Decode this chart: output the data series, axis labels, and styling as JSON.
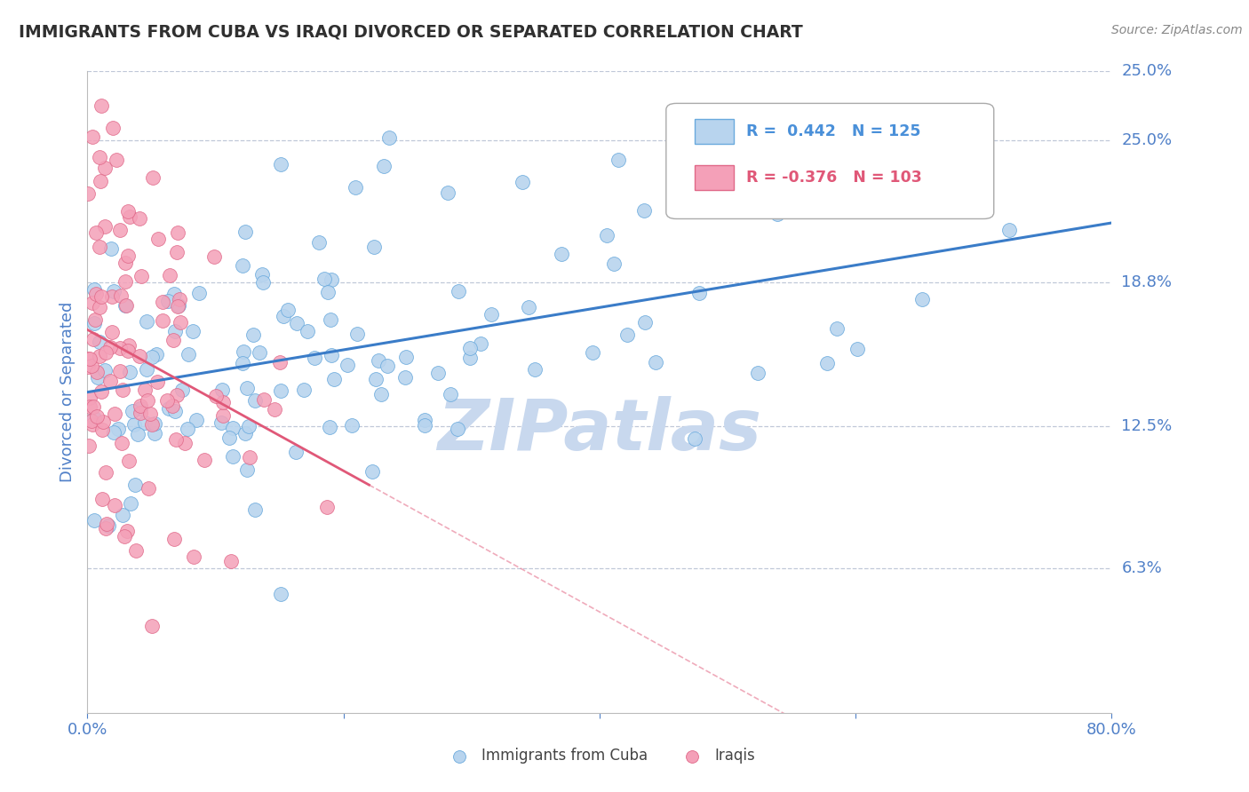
{
  "title": "IMMIGRANTS FROM CUBA VS IRAQI DIVORCED OR SEPARATED CORRELATION CHART",
  "source_text": "Source: ZipAtlas.com",
  "ylabel": "Divorced or Separated",
  "xlim": [
    0.0,
    0.8
  ],
  "ylim": [
    0.0,
    0.28
  ],
  "xticks": [
    0.0,
    0.2,
    0.4,
    0.6,
    0.8
  ],
  "xtick_labels": [
    "0.0%",
    "",
    "",
    "",
    "80.0%"
  ],
  "yticks": [
    0.063,
    0.125,
    0.188,
    0.25
  ],
  "ytick_labels": [
    "6.3%",
    "12.5%",
    "18.8%",
    "25.0%"
  ],
  "blue_R": 0.442,
  "blue_N": 125,
  "pink_R": -0.376,
  "pink_N": 103,
  "blue_color": "#b8d4ee",
  "pink_color": "#f4a0b8",
  "blue_edge_color": "#6aaadd",
  "pink_edge_color": "#e06888",
  "blue_line_color": "#3a7cc8",
  "pink_line_color": "#e05878",
  "watermark": "ZIPatlas",
  "watermark_color": "#c8d8ee",
  "background_color": "#ffffff",
  "grid_color": "#c0c8d8",
  "title_color": "#303030",
  "axis_label_color": "#5080c8",
  "tick_label_color": "#5080c8",
  "source_color": "#888888",
  "legend_text_color_blue": "#4a90d9",
  "legend_text_color_pink": "#e05878",
  "blue_line_start_y": 0.142,
  "blue_line_end_y": 0.192,
  "pink_line_start_y": 0.185,
  "pink_line_start_x": 0.0,
  "pink_line_solid_end_x": 0.22,
  "pink_line_end_x": 0.8
}
